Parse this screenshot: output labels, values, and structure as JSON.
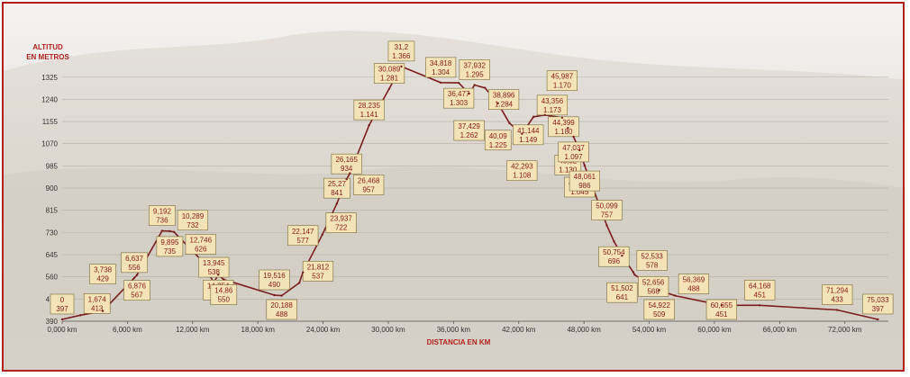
{
  "chart_data": {
    "type": "area",
    "ylabel_lines": [
      "ALTITUD",
      "EN METROS"
    ],
    "xlabel": "DISTANCIA EN KM",
    "ylim": [
      390,
      1400
    ],
    "xlim": [
      0,
      76
    ],
    "y_ticks": [
      390,
      475,
      560,
      645,
      730,
      815,
      900,
      985,
      1070,
      1155,
      1240,
      1325
    ],
    "y_tick_labels": [
      "390",
      "475",
      "560",
      "645",
      "730",
      "815",
      "900",
      "985",
      "1070",
      "1155",
      "1240",
      "1325"
    ],
    "x_ticks": [
      0,
      6,
      12,
      18,
      24,
      30,
      36,
      42,
      48,
      54,
      60,
      66,
      72
    ],
    "x_tick_labels": [
      "0,000 km",
      "6,000 km",
      "12,000 km",
      "18,000 km",
      "24,000 km",
      "30,000 km",
      "36,000 km",
      "42,000 km",
      "48,000 km",
      "54,000 km",
      "60,000 km",
      "66,000 km",
      "72,000 km"
    ],
    "grid": true,
    "line_color": "#7a1d1d",
    "points": [
      {
        "x": 0,
        "y": 397,
        "km": "0",
        "alt": "397"
      },
      {
        "x": 1.674,
        "y": 413,
        "km": "1,674",
        "alt": "413"
      },
      {
        "x": 3.738,
        "y": 429,
        "km": "3,738",
        "alt": "429"
      },
      {
        "x": 6.637,
        "y": 556,
        "km": "6,637",
        "alt": "556"
      },
      {
        "x": 6.876,
        "y": 567,
        "km": "6,876",
        "alt": "567"
      },
      {
        "x": 9.192,
        "y": 736,
        "km": "9,192",
        "alt": "736"
      },
      {
        "x": 9.895,
        "y": 735,
        "km": "9,895",
        "alt": "735"
      },
      {
        "x": 10.289,
        "y": 732,
        "km": "10,289",
        "alt": "732"
      },
      {
        "x": 12.746,
        "y": 626,
        "km": "12,746",
        "alt": "626"
      },
      {
        "x": 13.945,
        "y": 538,
        "km": "13,945",
        "alt": "538"
      },
      {
        "x": 14.354,
        "y": 568,
        "km": "14,354",
        "alt": "568"
      },
      {
        "x": 14.86,
        "y": 550,
        "km": "14,86",
        "alt": "550"
      },
      {
        "x": 19.516,
        "y": 490,
        "km": "19,516",
        "alt": "490"
      },
      {
        "x": 20.188,
        "y": 488,
        "km": "20,188",
        "alt": "488"
      },
      {
        "x": 21.812,
        "y": 537,
        "km": "21,812",
        "alt": "537"
      },
      {
        "x": 22.147,
        "y": 577,
        "km": "22,147",
        "alt": "577"
      },
      {
        "x": 23.937,
        "y": 722,
        "km": "23,937",
        "alt": "722"
      },
      {
        "x": 25.27,
        "y": 841,
        "km": "25,27",
        "alt": "841"
      },
      {
        "x": 26.165,
        "y": 934,
        "km": "26,165",
        "alt": "934"
      },
      {
        "x": 26.468,
        "y": 957,
        "km": "26,468",
        "alt": "957"
      },
      {
        "x": 28.235,
        "y": 1141,
        "km": "28,235",
        "alt": "1.141"
      },
      {
        "x": 30.089,
        "y": 1281,
        "km": "30,089",
        "alt": "1.281"
      },
      {
        "x": 31.2,
        "y": 1366,
        "km": "31,2",
        "alt": "1.366"
      },
      {
        "x": 34.818,
        "y": 1304,
        "km": "34,818",
        "alt": "1.304"
      },
      {
        "x": 36.477,
        "y": 1303,
        "km": "36,477",
        "alt": "1.303"
      },
      {
        "x": 37.429,
        "y": 1262,
        "km": "37,429",
        "alt": "1.262"
      },
      {
        "x": 37.932,
        "y": 1295,
        "km": "37,932",
        "alt": "1.295"
      },
      {
        "x": 38.896,
        "y": 1284,
        "km": "38,896",
        "alt": "1.284"
      },
      {
        "x": 40.09,
        "y": 1225,
        "km": "40,09",
        "alt": "1.225"
      },
      {
        "x": 41.144,
        "y": 1149,
        "km": "41,144",
        "alt": "1.149"
      },
      {
        "x": 42.293,
        "y": 1108,
        "km": "42,293",
        "alt": "1.108"
      },
      {
        "x": 43.356,
        "y": 1173,
        "km": "43,356",
        "alt": "1.173"
      },
      {
        "x": 44.399,
        "y": 1180,
        "km": "44,399",
        "alt": "1.180"
      },
      {
        "x": 45.987,
        "y": 1170,
        "km": "45,987",
        "alt": "1.170"
      },
      {
        "x": 46.52,
        "y": 1130,
        "km": "46,52",
        "alt": "1.130"
      },
      {
        "x": 47.037,
        "y": 1097,
        "km": "47,037",
        "alt": "1.097"
      },
      {
        "x": 47.597,
        "y": 1045,
        "km": "47,597",
        "alt": "1.045"
      },
      {
        "x": 48.061,
        "y": 986,
        "km": "48,061",
        "alt": "986"
      },
      {
        "x": 50.099,
        "y": 757,
        "km": "50,099",
        "alt": "757"
      },
      {
        "x": 50.754,
        "y": 696,
        "km": "50,754",
        "alt": "696"
      },
      {
        "x": 51.502,
        "y": 641,
        "km": "51,502",
        "alt": "641"
      },
      {
        "x": 52.533,
        "y": 578,
        "km": "52,533",
        "alt": "578"
      },
      {
        "x": 52.656,
        "y": 568,
        "km": "52,656",
        "alt": "568"
      },
      {
        "x": 54.922,
        "y": 509,
        "km": "54,922",
        "alt": "509"
      },
      {
        "x": 56.369,
        "y": 488,
        "km": "56,369",
        "alt": "488"
      },
      {
        "x": 60.655,
        "y": 451,
        "km": "60,655",
        "alt": "451"
      },
      {
        "x": 64.168,
        "y": 451,
        "km": "64,168",
        "alt": "451"
      },
      {
        "x": 71.294,
        "y": 433,
        "km": "71,294",
        "alt": "433"
      },
      {
        "x": 75.033,
        "y": 397,
        "km": "75,033",
        "alt": "397"
      }
    ]
  }
}
